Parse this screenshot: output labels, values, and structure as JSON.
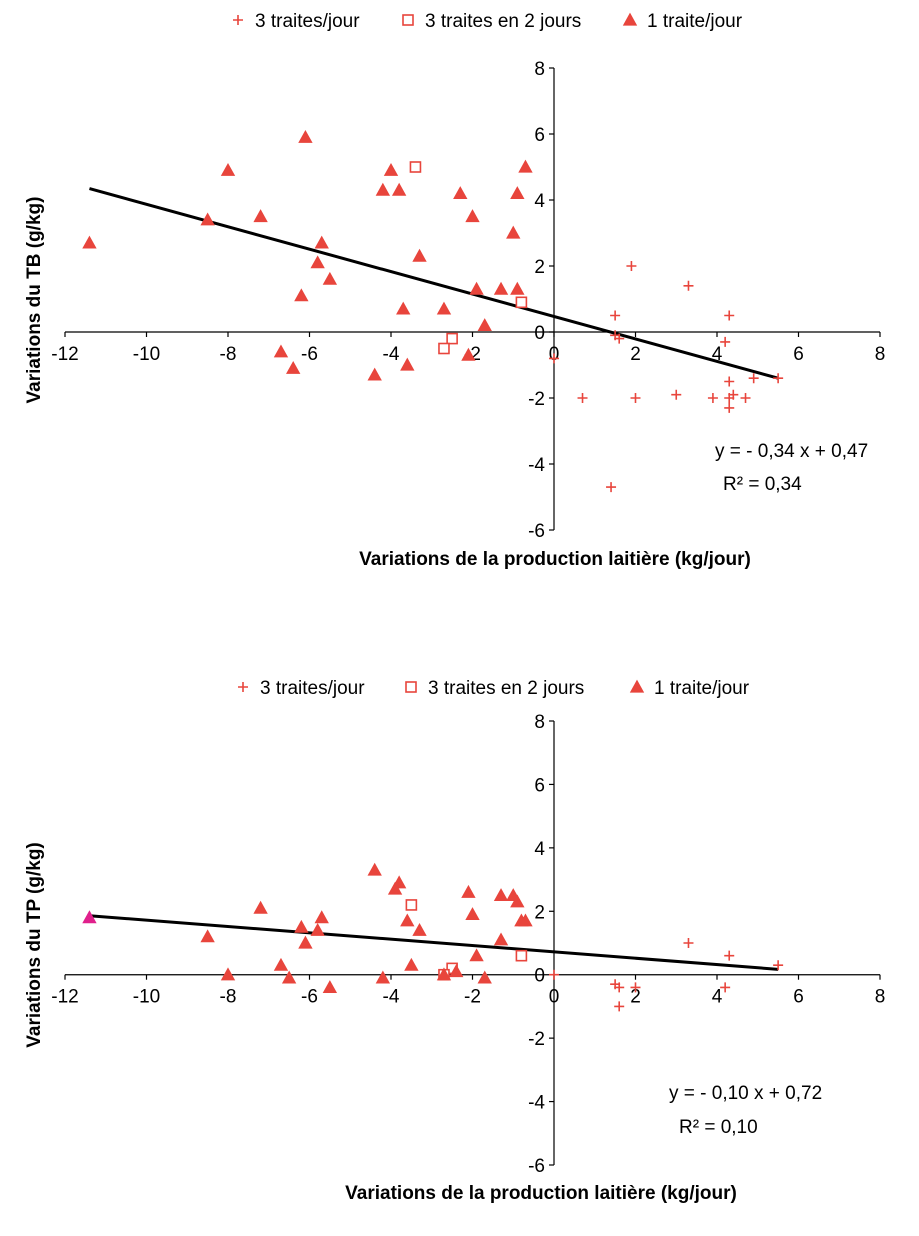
{
  "chart_data": [
    {
      "type": "scatter",
      "xlabel": "Variations de la production laitière (kg/jour)",
      "ylabel": "Variations du TB (g/kg)",
      "xlim": [
        -12,
        8
      ],
      "ylim": [
        -6,
        8
      ],
      "xticks": [
        "-12",
        "-10",
        "-8",
        "-6",
        "-4",
        "-2",
        "0",
        "2",
        "4",
        "6",
        "8"
      ],
      "yticks": [
        "-6",
        "-4",
        "-2",
        "0",
        "2",
        "4",
        "6",
        "8"
      ],
      "legend": [
        "3 traites/jour",
        "3 traites en 2 jours",
        "1 traite/jour"
      ],
      "colors": {
        "marker": "#e8453c",
        "line": "#000000"
      },
      "equation": "y = - 0,34 x + 0,47",
      "r2": "R² = 0,34",
      "fit": {
        "slope": -0.34,
        "intercept": 0.47,
        "x_range": [
          -11.4,
          5.5
        ]
      },
      "series": [
        {
          "name": "3 traites/jour",
          "marker": "plus",
          "points": [
            [
              1.9,
              2.0
            ],
            [
              3.3,
              1.4
            ],
            [
              1.5,
              0.5
            ],
            [
              4.3,
              0.5
            ],
            [
              1.5,
              -0.1
            ],
            [
              1.6,
              -0.2
            ],
            [
              4.2,
              -0.3
            ],
            [
              0.0,
              -0.8
            ],
            [
              4.3,
              -1.5
            ],
            [
              4.9,
              -1.4
            ],
            [
              5.5,
              -1.4
            ],
            [
              0.7,
              -2.0
            ],
            [
              2.0,
              -2.0
            ],
            [
              3.0,
              -1.9
            ],
            [
              3.9,
              -2.0
            ],
            [
              4.3,
              -2.0
            ],
            [
              4.4,
              -1.9
            ],
            [
              4.7,
              -2.0
            ],
            [
              4.3,
              -2.3
            ],
            [
              1.4,
              -4.7
            ]
          ]
        },
        {
          "name": "3 traites en 2 jours",
          "marker": "square",
          "points": [
            [
              -3.4,
              5.0
            ],
            [
              -0.8,
              0.9
            ],
            [
              -2.5,
              -0.2
            ],
            [
              -2.7,
              -0.5
            ]
          ]
        },
        {
          "name": "1 traite/jour",
          "marker": "triangle",
          "points": [
            [
              -11.4,
              2.7
            ],
            [
              -8.5,
              3.4
            ],
            [
              -8.0,
              4.9
            ],
            [
              -7.2,
              3.5
            ],
            [
              -6.7,
              -0.6
            ],
            [
              -6.4,
              -1.1
            ],
            [
              -6.2,
              1.1
            ],
            [
              -6.1,
              5.9
            ],
            [
              -5.8,
              2.1
            ],
            [
              -5.7,
              2.7
            ],
            [
              -5.5,
              1.6
            ],
            [
              -4.4,
              -1.3
            ],
            [
              -4.2,
              4.3
            ],
            [
              -4.0,
              4.9
            ],
            [
              -3.8,
              4.3
            ],
            [
              -3.7,
              0.7
            ],
            [
              -3.6,
              -1.0
            ],
            [
              -3.3,
              2.3
            ],
            [
              -2.7,
              0.7
            ],
            [
              -2.3,
              4.2
            ],
            [
              -2.1,
              -0.7
            ],
            [
              -2.0,
              3.5
            ],
            [
              -1.9,
              1.3
            ],
            [
              -1.7,
              0.2
            ],
            [
              -1.3,
              1.3
            ],
            [
              -1.0,
              3.0
            ],
            [
              -0.9,
              4.2
            ],
            [
              -0.9,
              1.3
            ],
            [
              -0.7,
              5.0
            ]
          ]
        }
      ]
    },
    {
      "type": "scatter",
      "xlabel": "Variations de la production  laitière (kg/jour)",
      "ylabel": "Variations du TP (g/kg)",
      "xlim": [
        -12,
        8
      ],
      "ylim": [
        -6,
        8
      ],
      "xticks": [
        "-12",
        "-10",
        "-8",
        "-6",
        "-4",
        "-2",
        "0",
        "2",
        "4",
        "6",
        "8"
      ],
      "yticks": [
        "-6",
        "-4",
        "-2",
        "0",
        "2",
        "4",
        "6",
        "8"
      ],
      "legend": [
        "3 traites/jour",
        "3 traites en 2 jours",
        "1 traite/jour"
      ],
      "colors": {
        "marker": "#e8453c",
        "line": "#000000",
        "highlight": "#e0208c"
      },
      "equation": "y = - 0,10 x + 0,72",
      "r2": "R² = 0,10",
      "fit": {
        "slope": -0.1,
        "intercept": 0.72,
        "x_range": [
          -11.4,
          5.5
        ]
      },
      "series": [
        {
          "name": "3 traites/jour",
          "marker": "plus",
          "points": [
            [
              3.3,
              1.0
            ],
            [
              4.3,
              0.6
            ],
            [
              5.5,
              0.3
            ],
            [
              0.0,
              0.0
            ],
            [
              1.5,
              -0.3
            ],
            [
              1.6,
              -0.4
            ],
            [
              2.0,
              -0.4
            ],
            [
              4.2,
              -0.4
            ],
            [
              1.6,
              -1.0
            ]
          ]
        },
        {
          "name": "3 traites en 2 jours",
          "marker": "square",
          "points": [
            [
              -3.5,
              2.2
            ],
            [
              -0.8,
              0.6
            ],
            [
              -2.5,
              0.2
            ],
            [
              -2.7,
              0.0
            ]
          ]
        },
        {
          "name": "1 traite/jour",
          "marker": "triangle",
          "points": [
            [
              -11.4,
              1.8
            ],
            [
              -8.5,
              1.2
            ],
            [
              -8.0,
              0.0
            ],
            [
              -7.2,
              2.1
            ],
            [
              -6.7,
              0.3
            ],
            [
              -6.5,
              -0.1
            ],
            [
              -6.2,
              1.5
            ],
            [
              -6.1,
              1.0
            ],
            [
              -5.8,
              1.4
            ],
            [
              -5.7,
              1.8
            ],
            [
              -5.5,
              -0.4
            ],
            [
              -4.4,
              3.3
            ],
            [
              -4.2,
              -0.1
            ],
            [
              -3.9,
              2.7
            ],
            [
              -3.8,
              2.9
            ],
            [
              -3.6,
              1.7
            ],
            [
              -3.5,
              0.3
            ],
            [
              -3.3,
              1.4
            ],
            [
              -2.7,
              0.0
            ],
            [
              -2.4,
              0.1
            ],
            [
              -2.1,
              2.6
            ],
            [
              -2.0,
              1.9
            ],
            [
              -1.9,
              0.6
            ],
            [
              -1.7,
              -0.1
            ],
            [
              -1.3,
              2.5
            ],
            [
              -1.3,
              1.1
            ],
            [
              -1.0,
              2.5
            ],
            [
              -0.9,
              2.3
            ],
            [
              -0.8,
              1.7
            ],
            [
              -0.7,
              1.7
            ]
          ]
        }
      ]
    }
  ]
}
